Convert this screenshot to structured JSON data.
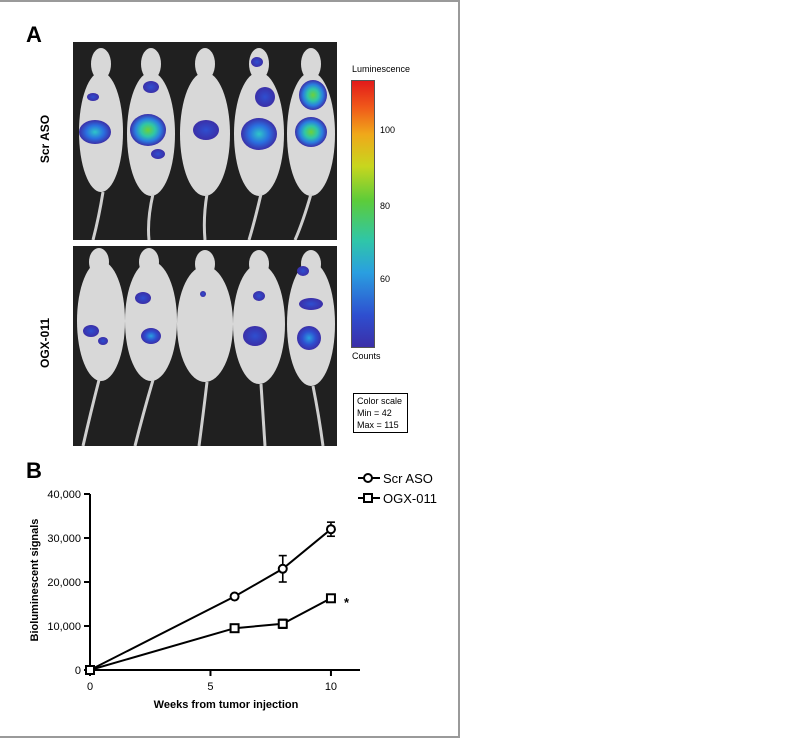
{
  "panel_a": {
    "letter": "A",
    "row_top_label": "Scr ASO",
    "row_bottom_label": "OGX-011",
    "colorbar": {
      "title": "Luminescence",
      "ticks": [
        "100",
        "80",
        "60"
      ],
      "bottom_label": "Counts",
      "colors": [
        "#3b2fa8",
        "#2e4fd0",
        "#2a9fe0",
        "#2fc6a8",
        "#5ccc3a",
        "#c8d61e",
        "#f0a81a",
        "#f05a1a",
        "#e21a1a"
      ]
    },
    "color_scale": {
      "title": "Color scale",
      "min": "Min = 42",
      "max": "Max = 115"
    }
  },
  "panel_b": {
    "letter": "B"
  },
  "chart_data": {
    "type": "line",
    "xlabel": "Weeks from tumor injection",
    "ylabel": "Bioluminescent signals",
    "xlim": [
      0,
      10.5
    ],
    "ylim": [
      0,
      40000
    ],
    "xticks": [
      "0",
      "5",
      "10"
    ],
    "yticks": [
      "0",
      "10,000",
      "20,000",
      "30,000",
      "40,000"
    ],
    "legend_position": "top-right",
    "series": [
      {
        "name": "Scr ASO",
        "marker": "circle",
        "x": [
          0,
          6,
          8,
          10
        ],
        "y": [
          0,
          16700,
          23000,
          32000
        ],
        "err": [
          0,
          300,
          3000,
          1600
        ]
      },
      {
        "name": "OGX-011",
        "marker": "square",
        "x": [
          0,
          6,
          8,
          10
        ],
        "y": [
          0,
          9500,
          10500,
          16300
        ],
        "err": [
          0,
          300,
          1000,
          700
        ]
      }
    ],
    "annotation": "*"
  }
}
